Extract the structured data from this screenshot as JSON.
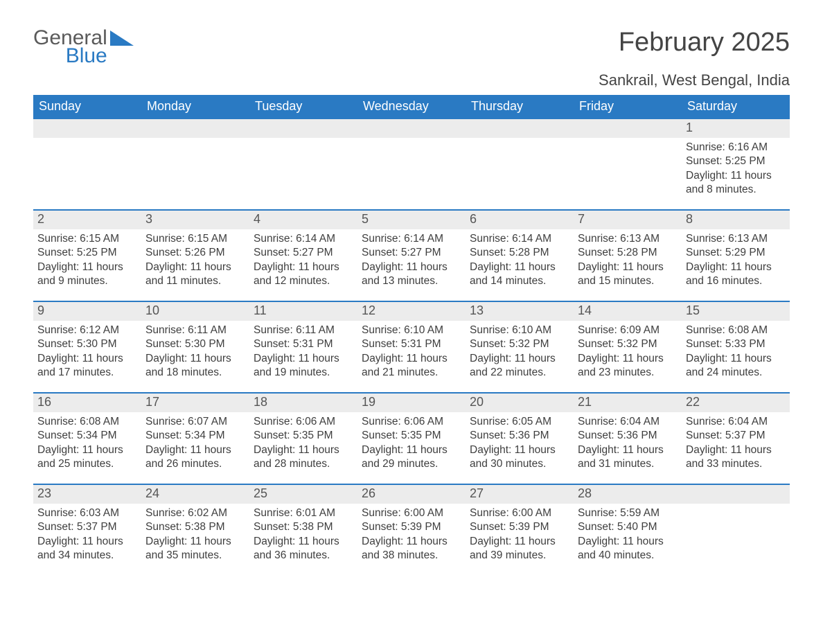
{
  "logo": {
    "word1": "General",
    "word2": "Blue",
    "tri_color": "#2a7ac3",
    "text_gray": "#5a5a5a"
  },
  "title": "February 2025",
  "location": "Sankrail, West Bengal, India",
  "colors": {
    "header_bg": "#2a7ac3",
    "header_text": "#ffffff",
    "row_border": "#2a7ac3",
    "daynum_bg": "#ececec",
    "daynum_text": "#555555",
    "body_text": "#3e3e3e",
    "page_bg": "#ffffff"
  },
  "fonts": {
    "title_size_pt": 29,
    "location_size_pt": 17,
    "dow_size_pt": 14,
    "body_size_pt": 12
  },
  "days_of_week": [
    "Sunday",
    "Monday",
    "Tuesday",
    "Wednesday",
    "Thursday",
    "Friday",
    "Saturday"
  ],
  "weeks": [
    [
      {
        "n": "",
        "sr": "",
        "ss": "",
        "dl": ""
      },
      {
        "n": "",
        "sr": "",
        "ss": "",
        "dl": ""
      },
      {
        "n": "",
        "sr": "",
        "ss": "",
        "dl": ""
      },
      {
        "n": "",
        "sr": "",
        "ss": "",
        "dl": ""
      },
      {
        "n": "",
        "sr": "",
        "ss": "",
        "dl": ""
      },
      {
        "n": "",
        "sr": "",
        "ss": "",
        "dl": ""
      },
      {
        "n": "1",
        "sr": "Sunrise: 6:16 AM",
        "ss": "Sunset: 5:25 PM",
        "dl": "Daylight: 11 hours and 8 minutes."
      }
    ],
    [
      {
        "n": "2",
        "sr": "Sunrise: 6:15 AM",
        "ss": "Sunset: 5:25 PM",
        "dl": "Daylight: 11 hours and 9 minutes."
      },
      {
        "n": "3",
        "sr": "Sunrise: 6:15 AM",
        "ss": "Sunset: 5:26 PM",
        "dl": "Daylight: 11 hours and 11 minutes."
      },
      {
        "n": "4",
        "sr": "Sunrise: 6:14 AM",
        "ss": "Sunset: 5:27 PM",
        "dl": "Daylight: 11 hours and 12 minutes."
      },
      {
        "n": "5",
        "sr": "Sunrise: 6:14 AM",
        "ss": "Sunset: 5:27 PM",
        "dl": "Daylight: 11 hours and 13 minutes."
      },
      {
        "n": "6",
        "sr": "Sunrise: 6:14 AM",
        "ss": "Sunset: 5:28 PM",
        "dl": "Daylight: 11 hours and 14 minutes."
      },
      {
        "n": "7",
        "sr": "Sunrise: 6:13 AM",
        "ss": "Sunset: 5:28 PM",
        "dl": "Daylight: 11 hours and 15 minutes."
      },
      {
        "n": "8",
        "sr": "Sunrise: 6:13 AM",
        "ss": "Sunset: 5:29 PM",
        "dl": "Daylight: 11 hours and 16 minutes."
      }
    ],
    [
      {
        "n": "9",
        "sr": "Sunrise: 6:12 AM",
        "ss": "Sunset: 5:30 PM",
        "dl": "Daylight: 11 hours and 17 minutes."
      },
      {
        "n": "10",
        "sr": "Sunrise: 6:11 AM",
        "ss": "Sunset: 5:30 PM",
        "dl": "Daylight: 11 hours and 18 minutes."
      },
      {
        "n": "11",
        "sr": "Sunrise: 6:11 AM",
        "ss": "Sunset: 5:31 PM",
        "dl": "Daylight: 11 hours and 19 minutes."
      },
      {
        "n": "12",
        "sr": "Sunrise: 6:10 AM",
        "ss": "Sunset: 5:31 PM",
        "dl": "Daylight: 11 hours and 21 minutes."
      },
      {
        "n": "13",
        "sr": "Sunrise: 6:10 AM",
        "ss": "Sunset: 5:32 PM",
        "dl": "Daylight: 11 hours and 22 minutes."
      },
      {
        "n": "14",
        "sr": "Sunrise: 6:09 AM",
        "ss": "Sunset: 5:32 PM",
        "dl": "Daylight: 11 hours and 23 minutes."
      },
      {
        "n": "15",
        "sr": "Sunrise: 6:08 AM",
        "ss": "Sunset: 5:33 PM",
        "dl": "Daylight: 11 hours and 24 minutes."
      }
    ],
    [
      {
        "n": "16",
        "sr": "Sunrise: 6:08 AM",
        "ss": "Sunset: 5:34 PM",
        "dl": "Daylight: 11 hours and 25 minutes."
      },
      {
        "n": "17",
        "sr": "Sunrise: 6:07 AM",
        "ss": "Sunset: 5:34 PM",
        "dl": "Daylight: 11 hours and 26 minutes."
      },
      {
        "n": "18",
        "sr": "Sunrise: 6:06 AM",
        "ss": "Sunset: 5:35 PM",
        "dl": "Daylight: 11 hours and 28 minutes."
      },
      {
        "n": "19",
        "sr": "Sunrise: 6:06 AM",
        "ss": "Sunset: 5:35 PM",
        "dl": "Daylight: 11 hours and 29 minutes."
      },
      {
        "n": "20",
        "sr": "Sunrise: 6:05 AM",
        "ss": "Sunset: 5:36 PM",
        "dl": "Daylight: 11 hours and 30 minutes."
      },
      {
        "n": "21",
        "sr": "Sunrise: 6:04 AM",
        "ss": "Sunset: 5:36 PM",
        "dl": "Daylight: 11 hours and 31 minutes."
      },
      {
        "n": "22",
        "sr": "Sunrise: 6:04 AM",
        "ss": "Sunset: 5:37 PM",
        "dl": "Daylight: 11 hours and 33 minutes."
      }
    ],
    [
      {
        "n": "23",
        "sr": "Sunrise: 6:03 AM",
        "ss": "Sunset: 5:37 PM",
        "dl": "Daylight: 11 hours and 34 minutes."
      },
      {
        "n": "24",
        "sr": "Sunrise: 6:02 AM",
        "ss": "Sunset: 5:38 PM",
        "dl": "Daylight: 11 hours and 35 minutes."
      },
      {
        "n": "25",
        "sr": "Sunrise: 6:01 AM",
        "ss": "Sunset: 5:38 PM",
        "dl": "Daylight: 11 hours and 36 minutes."
      },
      {
        "n": "26",
        "sr": "Sunrise: 6:00 AM",
        "ss": "Sunset: 5:39 PM",
        "dl": "Daylight: 11 hours and 38 minutes."
      },
      {
        "n": "27",
        "sr": "Sunrise: 6:00 AM",
        "ss": "Sunset: 5:39 PM",
        "dl": "Daylight: 11 hours and 39 minutes."
      },
      {
        "n": "28",
        "sr": "Sunrise: 5:59 AM",
        "ss": "Sunset: 5:40 PM",
        "dl": "Daylight: 11 hours and 40 minutes."
      },
      {
        "n": "",
        "sr": "",
        "ss": "",
        "dl": ""
      }
    ]
  ]
}
